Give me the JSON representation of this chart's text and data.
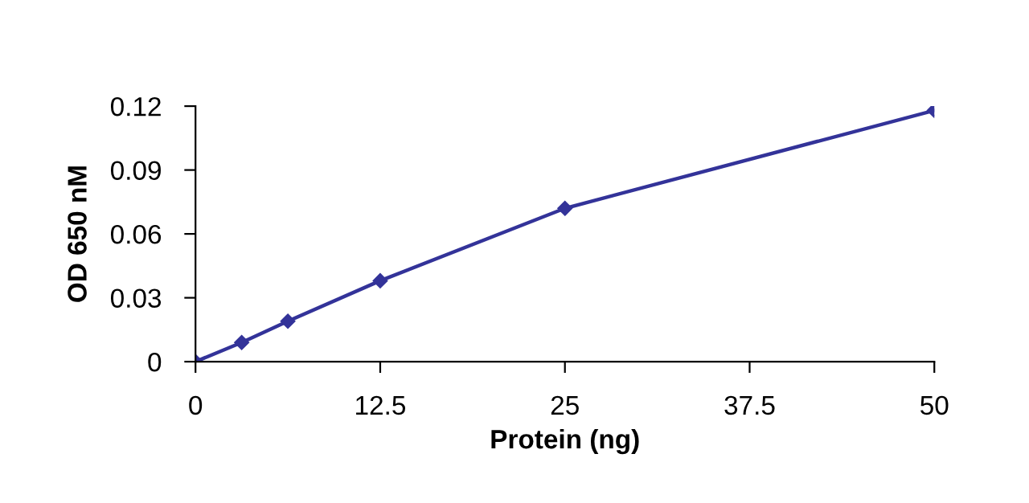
{
  "chart_data": {
    "type": "line",
    "xlabel": "Protein (ng)",
    "ylabel": "OD 650 nM",
    "x": [
      0,
      3.125,
      6.25,
      12.5,
      25,
      50
    ],
    "series": [
      {
        "color": "#333399",
        "values": [
          0,
          0.009,
          0.019,
          0.038,
          0.072,
          0.118
        ]
      }
    ],
    "xlim": [
      0,
      50
    ],
    "xticks": [
      0,
      12.5,
      25,
      37.5,
      50
    ],
    "ylim": [
      0,
      0.12
    ],
    "yticks": [
      0,
      0.03,
      0.06,
      0.09,
      0.12
    ],
    "grid": false,
    "legend": false,
    "marker": "diamond",
    "line_style": "solid"
  }
}
